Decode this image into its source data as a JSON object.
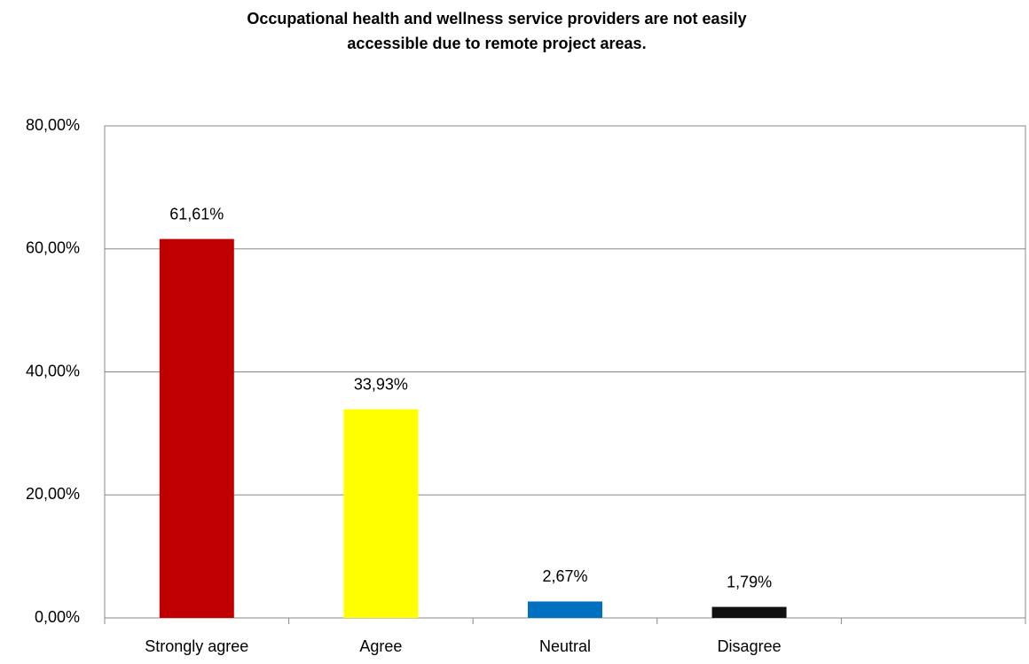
{
  "chart_data": {
    "type": "bar",
    "title": [
      "Occupational health and wellness service providers are not easily",
      "accessible due to remote project areas."
    ],
    "categories": [
      "Strongly agree",
      "Agree",
      "Neutral",
      "Disagree",
      null
    ],
    "values": [
      61.61,
      33.93,
      2.67,
      1.79,
      null
    ],
    "value_labels": [
      "61,61%",
      "33,93%",
      "2,67%",
      "1,79%",
      null
    ],
    "colors": [
      "#c00000",
      "#ffff00",
      "#0070c0",
      "#111111",
      null
    ],
    "ylim": [
      0,
      80
    ],
    "yticks": [
      {
        "value": 0,
        "label": "0,00%"
      },
      {
        "value": 20,
        "label": "20,00%"
      },
      {
        "value": 40,
        "label": "40,00%"
      },
      {
        "value": 60,
        "label": "60,00%"
      },
      {
        "value": 80,
        "label": "80,00%"
      }
    ],
    "grid": true
  }
}
